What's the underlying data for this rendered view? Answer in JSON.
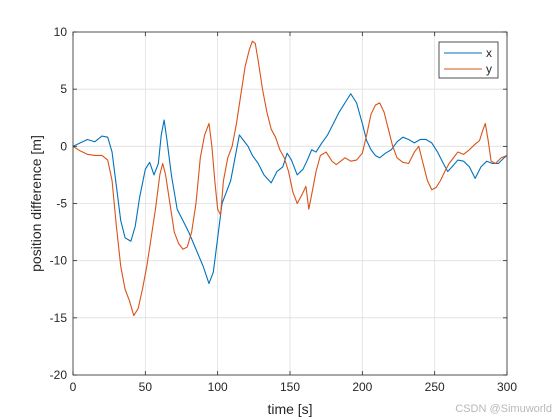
{
  "chart_data": {
    "type": "line",
    "xlabel": "time [s]",
    "ylabel": "position difference [m]",
    "xlim": [
      0,
      300
    ],
    "ylim": [
      -20,
      10
    ],
    "xticks": [
      0,
      50,
      100,
      150,
      200,
      250,
      300
    ],
    "yticks": [
      -20,
      -15,
      -10,
      -5,
      0,
      5,
      10
    ],
    "grid": true,
    "legend_position": "top-right",
    "series": [
      {
        "name": "x",
        "color": "#0072BD",
        "points": [
          [
            0,
            0
          ],
          [
            5,
            0.3
          ],
          [
            10,
            0.6
          ],
          [
            15,
            0.4
          ],
          [
            20,
            0.9
          ],
          [
            24,
            0.8
          ],
          [
            27,
            -0.5
          ],
          [
            30,
            -3.5
          ],
          [
            33,
            -6.5
          ],
          [
            36,
            -8
          ],
          [
            40,
            -8.3
          ],
          [
            43,
            -7
          ],
          [
            46,
            -4.5
          ],
          [
            50,
            -2
          ],
          [
            53,
            -1.4
          ],
          [
            56,
            -2.5
          ],
          [
            59,
            -1.5
          ],
          [
            61,
            1
          ],
          [
            63,
            2.3
          ],
          [
            65,
            0.5
          ],
          [
            68,
            -2.5
          ],
          [
            72,
            -5.5
          ],
          [
            76,
            -6.5
          ],
          [
            80,
            -7.5
          ],
          [
            85,
            -9
          ],
          [
            90,
            -10.5
          ],
          [
            94,
            -12
          ],
          [
            97,
            -11
          ],
          [
            100,
            -8
          ],
          [
            103,
            -5
          ],
          [
            106,
            -4
          ],
          [
            109,
            -3
          ],
          [
            112,
            -1
          ],
          [
            115,
            1
          ],
          [
            118,
            0.5
          ],
          [
            121,
            0
          ],
          [
            124,
            -0.8
          ],
          [
            128,
            -1.5
          ],
          [
            132,
            -2.5
          ],
          [
            137,
            -3.2
          ],
          [
            141,
            -2.2
          ],
          [
            145,
            -1.8
          ],
          [
            148,
            -0.6
          ],
          [
            151,
            -1.2
          ],
          [
            155,
            -2.5
          ],
          [
            159,
            -2
          ],
          [
            162,
            -1.2
          ],
          [
            165,
            -0.3
          ],
          [
            168,
            -0.5
          ],
          [
            172,
            0.3
          ],
          [
            176,
            1
          ],
          [
            180,
            2
          ],
          [
            184,
            3
          ],
          [
            188,
            3.8
          ],
          [
            192,
            4.6
          ],
          [
            196,
            3.8
          ],
          [
            200,
            2
          ],
          [
            203,
            0.5
          ],
          [
            206,
            -0.3
          ],
          [
            209,
            -0.8
          ],
          [
            212,
            -1
          ],
          [
            216,
            -0.6
          ],
          [
            220,
            -0.3
          ],
          [
            224,
            0.4
          ],
          [
            228,
            0.8
          ],
          [
            232,
            0.6
          ],
          [
            236,
            0.3
          ],
          [
            240,
            0.6
          ],
          [
            244,
            0.6
          ],
          [
            248,
            0.3
          ],
          [
            252,
            -0.5
          ],
          [
            256,
            -1.5
          ],
          [
            259,
            -2.2
          ],
          [
            262,
            -1.8
          ],
          [
            266,
            -1.2
          ],
          [
            270,
            -1.3
          ],
          [
            274,
            -1.8
          ],
          [
            278,
            -2.8
          ],
          [
            282,
            -1.8
          ],
          [
            286,
            -1.3
          ],
          [
            290,
            -1.5
          ],
          [
            294,
            -1.5
          ],
          [
            298,
            -1
          ],
          [
            300,
            -0.8
          ]
        ]
      },
      {
        "name": "y",
        "color": "#D95319",
        "points": [
          [
            0,
            0
          ],
          [
            5,
            -0.4
          ],
          [
            10,
            -0.7
          ],
          [
            15,
            -0.8
          ],
          [
            20,
            -0.8
          ],
          [
            24,
            -1.2
          ],
          [
            27,
            -3
          ],
          [
            30,
            -7
          ],
          [
            33,
            -10.5
          ],
          [
            36,
            -12.5
          ],
          [
            39,
            -13.5
          ],
          [
            42,
            -14.8
          ],
          [
            45,
            -14.2
          ],
          [
            48,
            -12.5
          ],
          [
            51,
            -10.5
          ],
          [
            54,
            -8
          ],
          [
            57,
            -5.5
          ],
          [
            60,
            -2.5
          ],
          [
            62,
            -1.5
          ],
          [
            64,
            -2.5
          ],
          [
            67,
            -5
          ],
          [
            70,
            -7.5
          ],
          [
            73,
            -8.5
          ],
          [
            76,
            -9
          ],
          [
            79,
            -8.8
          ],
          [
            82,
            -7.5
          ],
          [
            85,
            -5
          ],
          [
            88,
            -1
          ],
          [
            91,
            1
          ],
          [
            94,
            2
          ],
          [
            96,
            0
          ],
          [
            98,
            -3
          ],
          [
            100,
            -5.5
          ],
          [
            102,
            -6
          ],
          [
            104,
            -3
          ],
          [
            107,
            -1
          ],
          [
            110,
            0
          ],
          [
            113,
            2
          ],
          [
            116,
            4.5
          ],
          [
            119,
            7
          ],
          [
            122,
            8.5
          ],
          [
            124,
            9.2
          ],
          [
            126,
            9
          ],
          [
            128,
            7.5
          ],
          [
            131,
            5
          ],
          [
            134,
            3
          ],
          [
            137,
            1.5
          ],
          [
            140,
            0.8
          ],
          [
            143,
            -0.3
          ],
          [
            146,
            -1
          ],
          [
            149,
            -2.2
          ],
          [
            152,
            -4
          ],
          [
            155,
            -5
          ],
          [
            158,
            -4.3
          ],
          [
            161,
            -3.5
          ],
          [
            163,
            -5.5
          ],
          [
            165,
            -4.2
          ],
          [
            168,
            -2.2
          ],
          [
            171,
            -0.8
          ],
          [
            175,
            -0.5
          ],
          [
            179,
            -1.3
          ],
          [
            182,
            -1.6
          ],
          [
            185,
            -1.3
          ],
          [
            188,
            -1
          ],
          [
            192,
            -1.3
          ],
          [
            196,
            -1.2
          ],
          [
            200,
            -0.6
          ],
          [
            203,
            1
          ],
          [
            206,
            2.8
          ],
          [
            209,
            3.6
          ],
          [
            212,
            3.8
          ],
          [
            215,
            3
          ],
          [
            218,
            1.5
          ],
          [
            221,
            0
          ],
          [
            224,
            -1
          ],
          [
            228,
            -1.4
          ],
          [
            232,
            -1.5
          ],
          [
            236,
            -0.5
          ],
          [
            239,
            0
          ],
          [
            242,
            -1.5
          ],
          [
            245,
            -3
          ],
          [
            248,
            -3.8
          ],
          [
            251,
            -3.6
          ],
          [
            254,
            -3
          ],
          [
            257,
            -2.2
          ],
          [
            260,
            -1.5
          ],
          [
            263,
            -1
          ],
          [
            266,
            -0.5
          ],
          [
            270,
            -0.7
          ],
          [
            274,
            -0.3
          ],
          [
            278,
            0.2
          ],
          [
            281,
            0.5
          ],
          [
            283,
            1.3
          ],
          [
            285,
            2
          ],
          [
            287,
            0.5
          ],
          [
            289,
            -1.3
          ],
          [
            292,
            -1.5
          ],
          [
            296,
            -1
          ],
          [
            300,
            -0.8
          ]
        ]
      }
    ]
  },
  "watermark": "CSDN @Simuworld"
}
